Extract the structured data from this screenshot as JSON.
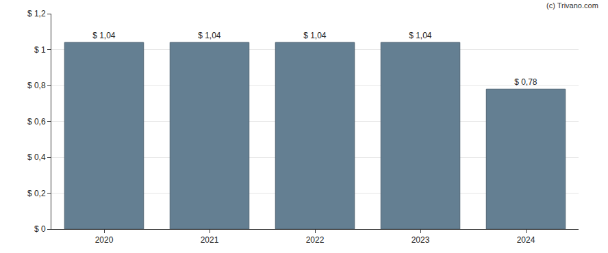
{
  "chart_data": {
    "type": "bar",
    "categories": [
      "2020",
      "2021",
      "2022",
      "2023",
      "2024"
    ],
    "values": [
      1.04,
      1.04,
      1.04,
      1.04,
      0.78
    ],
    "value_labels": [
      "$ 1,04",
      "$ 1,04",
      "$ 1,04",
      "$ 1,04",
      "$ 0,78"
    ],
    "data_labels": true,
    "color": "#647f92",
    "ylim": [
      0,
      1.2
    ],
    "yticks": [
      {
        "value": 0,
        "label": "$ 0"
      },
      {
        "value": 0.2,
        "label": "$ 0,2"
      },
      {
        "value": 0.4,
        "label": "$ 0,4"
      },
      {
        "value": 0.6,
        "label": "$ 0,6"
      },
      {
        "value": 0.8,
        "label": "$ 0,8"
      },
      {
        "value": 1,
        "label": "$ 1"
      },
      {
        "value": 1.2,
        "label": "$ 1,2"
      }
    ],
    "grid": true,
    "annotations": [
      "(c) Trivano.com"
    ]
  }
}
